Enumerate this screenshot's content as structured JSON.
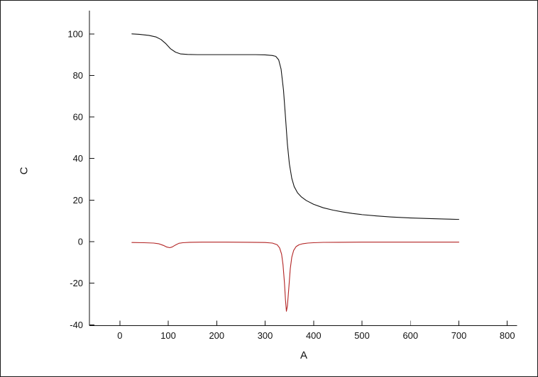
{
  "chart_data": {
    "type": "line",
    "title": "",
    "xlabel": "A",
    "ylabel": "C",
    "xlim": [
      0,
      800
    ],
    "ylim": [
      -40,
      100
    ],
    "xticks": [
      0,
      100,
      200,
      300,
      400,
      500,
      600,
      700,
      800
    ],
    "yticks": [
      -40,
      -20,
      0,
      20,
      40,
      60,
      80,
      100
    ],
    "grid": false,
    "legend": null,
    "series": [
      {
        "name": "black-curve",
        "color": "#111111",
        "x": [
          25,
          40,
          60,
          75,
          85,
          95,
          105,
          115,
          125,
          140,
          160,
          200,
          240,
          280,
          300,
          315,
          322,
          328,
          333,
          338,
          342,
          346,
          350,
          355,
          360,
          367,
          375,
          385,
          400,
          420,
          440,
          460,
          480,
          500,
          530,
          560,
          600,
          640,
          670,
          700
        ],
        "y": [
          100,
          99.8,
          99.3,
          98.5,
          97.3,
          95.3,
          92.8,
          91.2,
          90.4,
          90.1,
          90,
          90,
          90,
          90,
          89.9,
          89.6,
          89.2,
          87.5,
          83,
          73,
          60,
          47,
          37.5,
          30.5,
          26.5,
          23.5,
          21.5,
          19.8,
          18,
          16.3,
          15.2,
          14.3,
          13.6,
          13,
          12.4,
          11.9,
          11.4,
          11.1,
          10.9,
          10.7
        ]
      },
      {
        "name": "red-curve",
        "color": "#b22222",
        "x": [
          25,
          50,
          70,
          80,
          90,
          97,
          103,
          108,
          115,
          122,
          130,
          145,
          170,
          220,
          270,
          300,
          315,
          325,
          330,
          334,
          337,
          340,
          342,
          344,
          346,
          349,
          352,
          355,
          359,
          364,
          370,
          378,
          388,
          400,
          420,
          450,
          500,
          550,
          600,
          650,
          700
        ],
        "y": [
          -0.4,
          -0.5,
          -0.7,
          -1,
          -1.8,
          -2.6,
          -2.9,
          -2.6,
          -1.6,
          -0.8,
          -0.5,
          -0.3,
          -0.25,
          -0.25,
          -0.3,
          -0.4,
          -0.7,
          -1.5,
          -3,
          -6,
          -11,
          -20,
          -28,
          -33.5,
          -31,
          -22,
          -13,
          -7.5,
          -4.2,
          -2.4,
          -1.5,
          -1,
          -0.7,
          -0.5,
          -0.35,
          -0.3,
          -0.25,
          -0.25,
          -0.25,
          -0.25,
          -0.25
        ]
      }
    ]
  }
}
